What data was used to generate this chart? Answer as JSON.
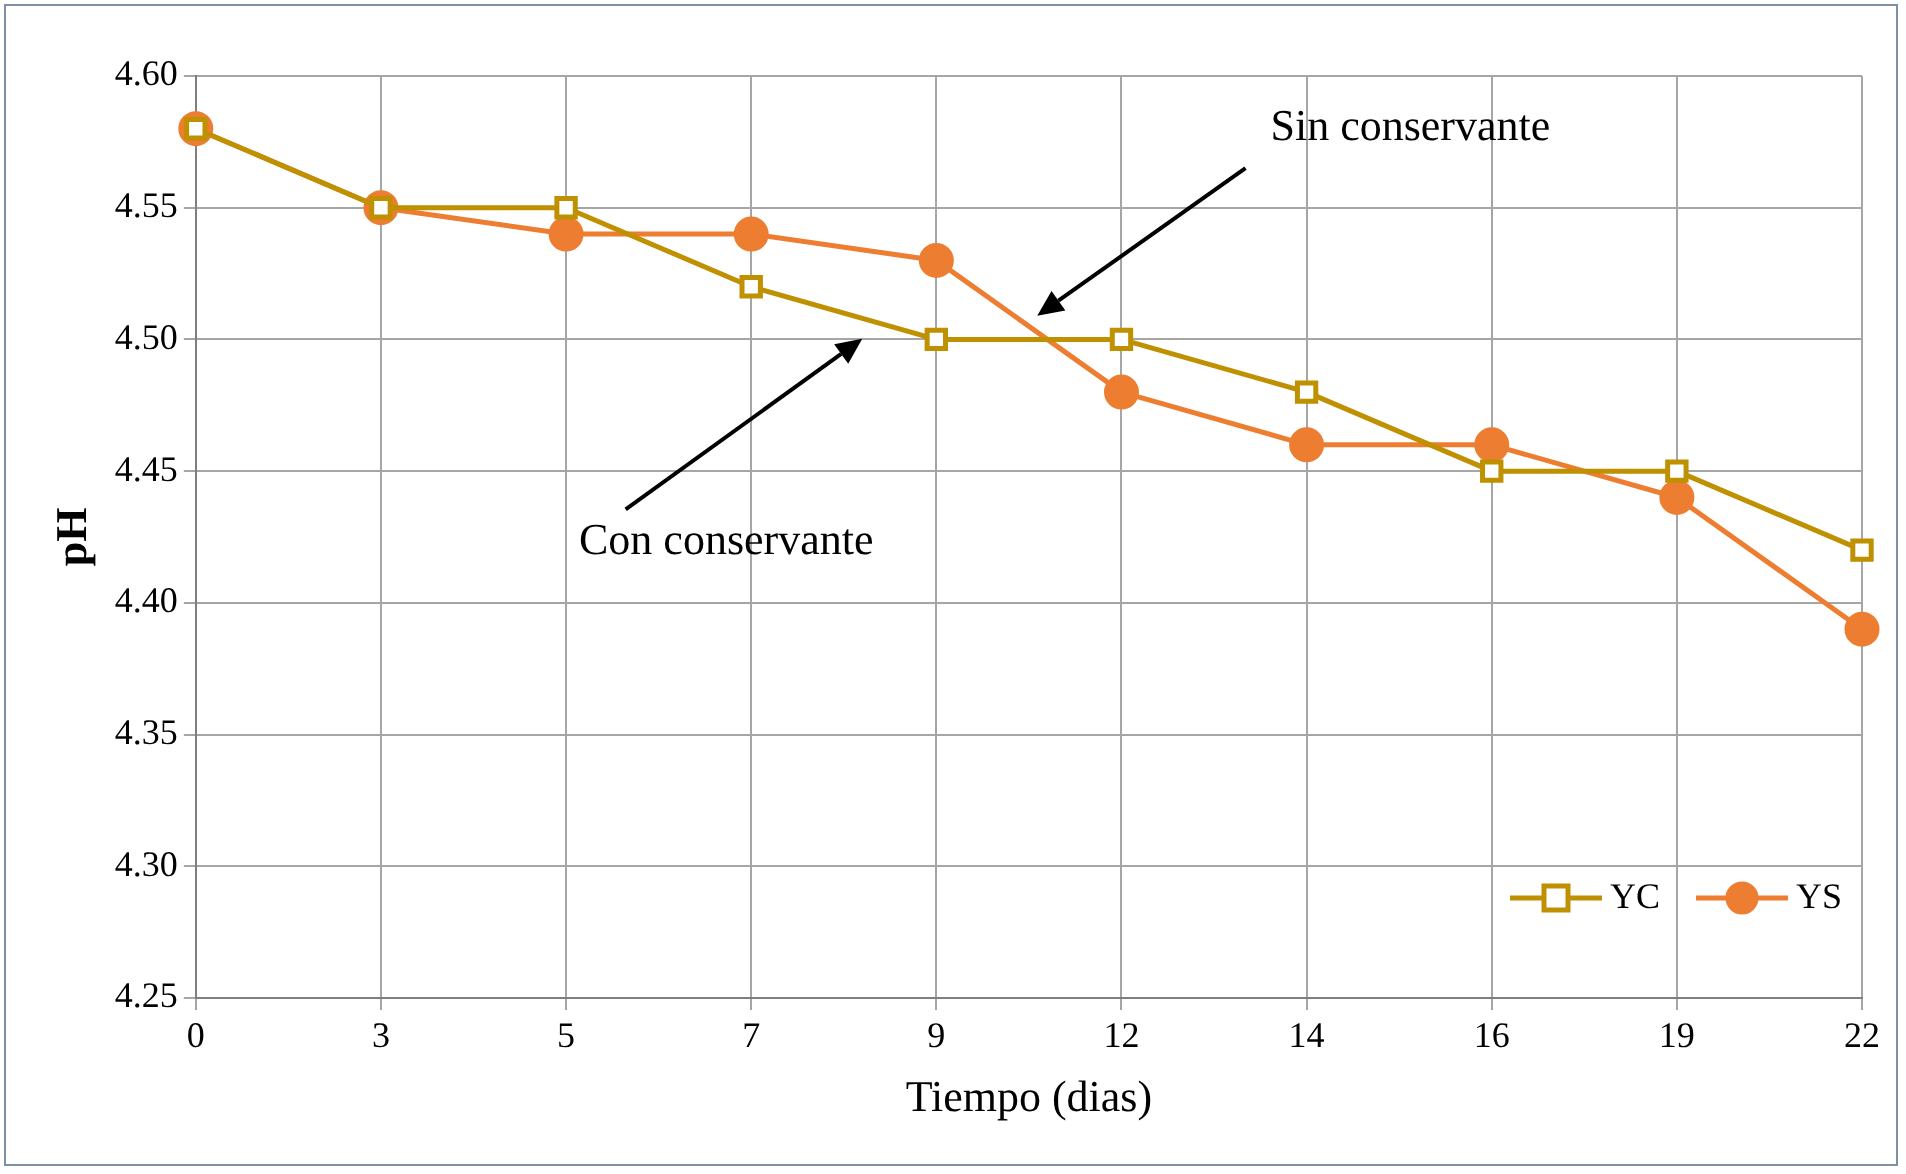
{
  "chart_data": {
    "type": "line",
    "xlabel": "Tiempo (dias)",
    "ylabel": "pH",
    "categories": [
      "0",
      "3",
      "5",
      "7",
      "9",
      "12",
      "14",
      "16",
      "19",
      "22"
    ],
    "series": [
      {
        "name": "YC",
        "color": "#bf9000",
        "marker": "square",
        "values": [
          4.58,
          4.55,
          4.55,
          4.52,
          4.5,
          4.5,
          4.48,
          4.45,
          4.45,
          4.42
        ]
      },
      {
        "name": "YS",
        "color": "#ed7d31",
        "marker": "circle",
        "values": [
          4.58,
          4.55,
          4.54,
          4.54,
          4.53,
          4.48,
          4.46,
          4.46,
          4.44,
          4.39
        ]
      }
    ],
    "ylim": [
      4.25,
      4.6
    ],
    "yticks": [
      4.25,
      {
        "value": 4.3,
        "label": "4.30"
      },
      4.35,
      {
        "value": 4.4,
        "label": "4.40"
      },
      4.45,
      {
        "value": 4.5,
        "label": "4.50"
      },
      4.55,
      {
        "value": 4.6,
        "label": "4.60"
      }
    ],
    "grid": true,
    "legend": "bottom right",
    "line_style": "solid",
    "annotations": [
      "Sin conservante",
      "Con conservante"
    ]
  }
}
